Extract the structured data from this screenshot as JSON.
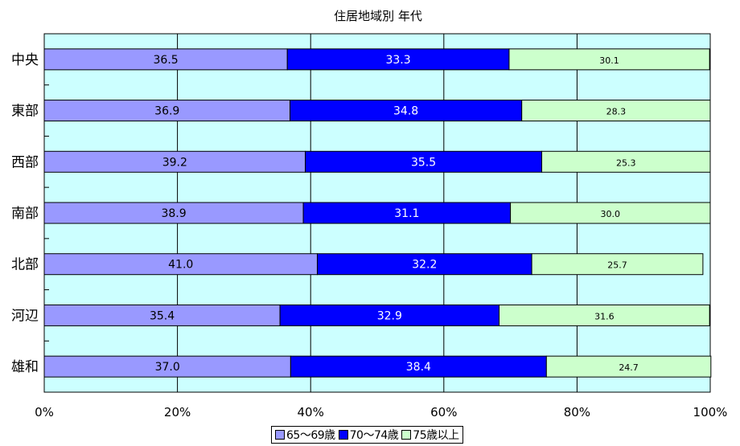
{
  "chart_data": {
    "type": "bar",
    "orientation": "horizontal",
    "stacked": true,
    "title": "住居地域別 年代",
    "categories": [
      "中央",
      "東部",
      "西部",
      "南部",
      "北部",
      "河辺",
      "雄和"
    ],
    "series": [
      {
        "name": "65〜69歳",
        "color": "#9999ff",
        "label_color": "#000000",
        "values": [
          36.5,
          36.9,
          39.2,
          38.9,
          41.0,
          35.4,
          37.0
        ],
        "labels": [
          "36.5",
          "36.9",
          "39.2",
          "38.9",
          "41.0",
          "35.4",
          "37.0"
        ]
      },
      {
        "name": "70〜74歳",
        "color": "#0000ff",
        "label_color": "#ffffff",
        "values": [
          33.3,
          34.8,
          35.5,
          31.1,
          32.2,
          32.9,
          38.4
        ],
        "labels": [
          "33.3",
          "34.8",
          "35.5",
          "31.1",
          "32.2",
          "32.9",
          "38.4"
        ]
      },
      {
        "name": "75歳以上",
        "color": "#ccffcc",
        "label_color": "#000000",
        "values": [
          30.1,
          28.3,
          25.3,
          30.0,
          25.7,
          31.6,
          24.7
        ],
        "labels": [
          "30.1",
          "28.3",
          "25.3",
          "30.0",
          "25.7",
          "31.6",
          "24.7"
        ]
      }
    ],
    "xlim": [
      0,
      100
    ],
    "x_ticks": [
      "0%",
      "20%",
      "40%",
      "60%",
      "80%",
      "100%"
    ],
    "xlabel": "",
    "ylabel": "",
    "grid": true,
    "legend_position": "bottom",
    "plot_background": "#ccffff"
  }
}
